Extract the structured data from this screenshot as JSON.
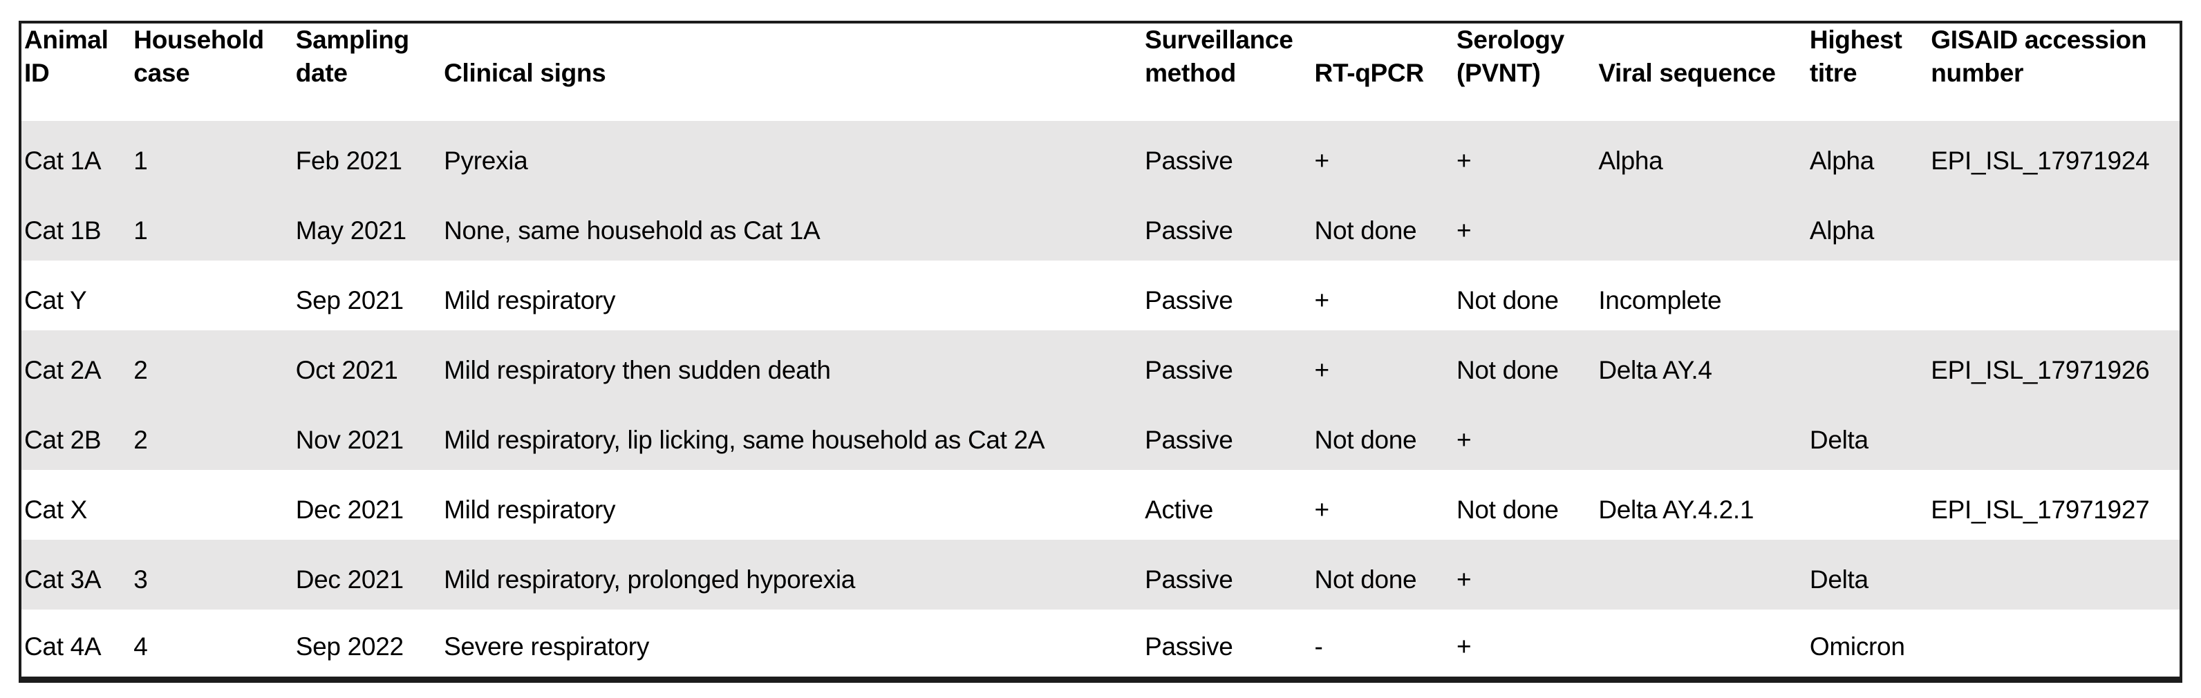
{
  "table": {
    "columns": [
      {
        "label": "Animal ID"
      },
      {
        "label": "Household case"
      },
      {
        "label": "Sampling date"
      },
      {
        "label": "Clinical signs"
      },
      {
        "label": "Surveillance method"
      },
      {
        "label": "RT-qPCR"
      },
      {
        "label": "Serology (PVNT)"
      },
      {
        "label": "Viral sequence"
      },
      {
        "label": "Highest titre"
      },
      {
        "label": "GISAID accession number"
      }
    ],
    "rows": [
      {
        "shaded": true,
        "cells": [
          "Cat 1A",
          "1",
          "Feb 2021",
          "Pyrexia",
          "Passive",
          "+",
          "+",
          "Alpha",
          "Alpha",
          "EPI_ISL_17971924"
        ]
      },
      {
        "shaded": true,
        "cells": [
          "Cat 1B",
          "1",
          "May 2021",
          "None, same household as Cat 1A",
          "Passive",
          "Not done",
          "+",
          "",
          "Alpha",
          ""
        ]
      },
      {
        "shaded": false,
        "cells": [
          "Cat Y",
          "",
          "Sep 2021",
          "Mild respiratory",
          "Passive",
          "+",
          "Not done",
          "Incomplete",
          "",
          ""
        ]
      },
      {
        "shaded": true,
        "cells": [
          "Cat 2A",
          "2",
          "Oct 2021",
          "Mild respiratory then sudden death",
          "Passive",
          "+",
          "Not done",
          "Delta AY.4",
          "",
          "EPI_ISL_17971926"
        ]
      },
      {
        "shaded": true,
        "cells": [
          "Cat 2B",
          "2",
          "Nov 2021",
          "Mild respiratory, lip licking, same household as Cat 2A",
          "Passive",
          "Not done",
          "+",
          "",
          "Delta",
          ""
        ]
      },
      {
        "shaded": false,
        "cells": [
          "Cat X",
          "",
          "Dec 2021",
          "Mild respiratory",
          "Active",
          "+",
          "Not done",
          "Delta AY.4.2.1",
          "",
          "EPI_ISL_17971927"
        ]
      },
      {
        "shaded": true,
        "cells": [
          "Cat 3A",
          "3",
          "Dec 2021",
          "Mild respiratory, prolonged hyporexia",
          "Passive",
          "Not done",
          "+",
          "",
          "Delta",
          ""
        ]
      },
      {
        "shaded": false,
        "cells": [
          "Cat 4A",
          "4",
          "Sep 2022",
          "Severe respiratory",
          "Passive",
          "-",
          "+",
          "",
          "Omicron",
          ""
        ]
      }
    ]
  },
  "colors": {
    "row_shading": "#e7e6e6",
    "border": "#1c1c1c",
    "text": "#000000",
    "background": "#ffffff"
  }
}
